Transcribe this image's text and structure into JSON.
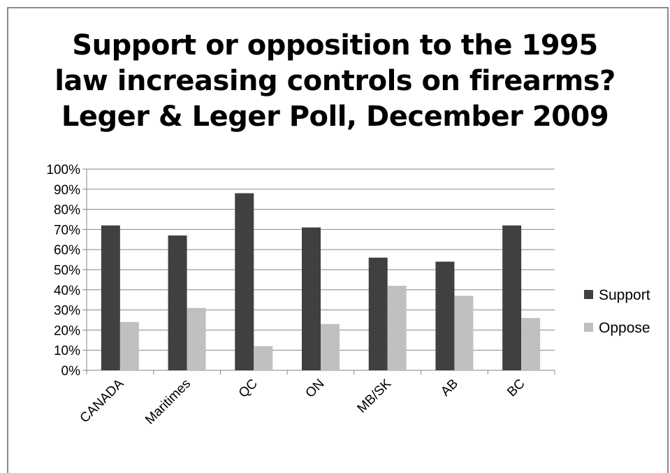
{
  "chart_data": {
    "type": "bar",
    "title_lines": [
      "Support or opposition to the 1995",
      "law increasing controls on firearms?",
      "Leger & Leger Poll, December 2009"
    ],
    "categories": [
      "CANADA",
      "Maritimes",
      "QC",
      "ON",
      "MB/SK",
      "AB",
      "BC"
    ],
    "series": [
      {
        "name": "Support",
        "color": "#404040",
        "values": [
          72,
          67,
          88,
          71,
          56,
          54,
          72
        ]
      },
      {
        "name": "Oppose",
        "color": "#c0c0c0",
        "values": [
          24,
          31,
          12,
          23,
          42,
          37,
          26
        ]
      }
    ],
    "y_ticks": [
      "0%",
      "10%",
      "20%",
      "30%",
      "40%",
      "50%",
      "60%",
      "70%",
      "80%",
      "90%",
      "100%"
    ],
    "ylim": [
      0,
      100
    ],
    "grid": true,
    "legend_position": "right"
  }
}
